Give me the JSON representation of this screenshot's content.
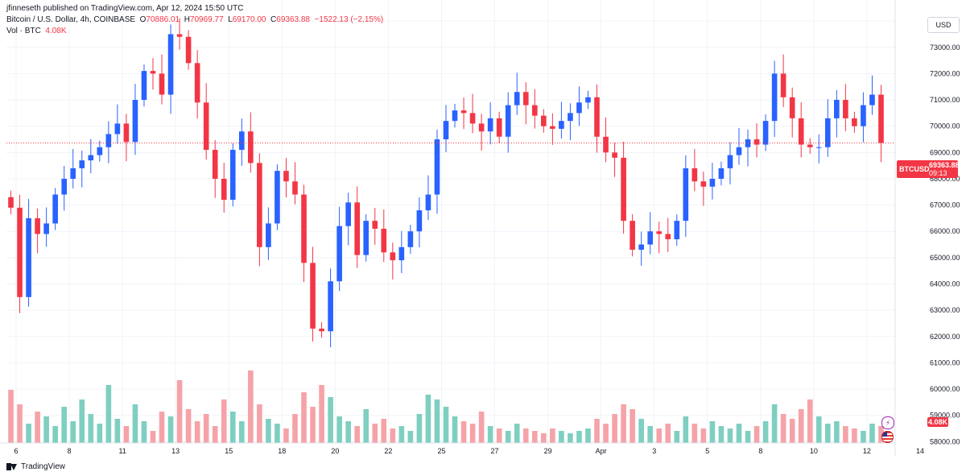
{
  "header": {
    "published": "jfinneseth published on TradingView.com, Apr 12, 2024 15:50 UTC",
    "instrument": "Bitcoin / U.S. Dollar, 4h, COINBASE",
    "ohlc": [
      {
        "label": "O",
        "value": "70886.01"
      },
      {
        "label": "H",
        "value": "70969.77"
      },
      {
        "label": "L",
        "value": "69170.00"
      },
      {
        "label": "C",
        "value": "69363.88"
      }
    ],
    "change": "−1522.13 (−2.15%)",
    "volume_label": "Vol · BTC",
    "volume_value": "4.08K"
  },
  "currency_button": "USD",
  "price_tag": {
    "symbol": "BTCUSD",
    "price": "69363.88",
    "countdown": "09:13"
  },
  "volume_tag": "4.08K",
  "footer": {
    "brand": "TradingView"
  },
  "icons": {
    "lightning": "lightning-icon",
    "flag": "us-flag-icon",
    "logo": "tradingview-logo-icon"
  },
  "colors": {
    "up": "#2962ff",
    "down": "#f23645",
    "vol_up": "#7fcfc0",
    "vol_down": "#f5a3a8",
    "grid": "#f0f3fa"
  },
  "chart_data": {
    "type": "candlestick",
    "y_ticks": [
      "74000.00",
      "73000.00",
      "72000.00",
      "71000.00",
      "70000.00",
      "69000.00",
      "68000.00",
      "67000.00",
      "66000.00",
      "65000.00",
      "64000.00",
      "63000.00",
      "62000.00",
      "61000.00",
      "60000.00",
      "59000.00",
      "58000.00"
    ],
    "ylim": [
      57950,
      74800
    ],
    "x_ticks": [
      "6",
      "8",
      "11",
      "13",
      "15",
      "18",
      "20",
      "22",
      "25",
      "27",
      "29",
      "Apr",
      "3",
      "5",
      "8",
      "10",
      "12",
      "14"
    ],
    "last_price": 69363.88,
    "close_path": [
      66900,
      63500,
      66500,
      65900,
      66300,
      67400,
      68000,
      68400,
      68700,
      68900,
      69200,
      69700,
      70100,
      69400,
      71000,
      72100,
      72000,
      71200,
      73500,
      73400,
      72400,
      70900,
      69100,
      68000,
      67200,
      69100,
      69800,
      68600,
      65400,
      66300,
      68300,
      67900,
      67400,
      64800,
      62300,
      62200,
      64100,
      66200,
      67100,
      65100,
      66400,
      66100,
      65200,
      64900,
      65400,
      66000,
      66800,
      67400,
      69500,
      70200,
      70600,
      70500,
      70100,
      69800,
      70300,
      69600,
      70800,
      71300,
      70800,
      70400,
      70000,
      69900,
      70200,
      70500,
      70900,
      71100,
      69600,
      69000,
      68800,
      66400,
      65300,
      65500,
      66000,
      65900,
      65700,
      66400,
      68400,
      67900,
      67700,
      68000,
      68400,
      68900,
      69200,
      69500,
      69300,
      70200,
      72000,
      71100,
      70300,
      69300,
      69200,
      69200,
      70300,
      71000,
      70300,
      70000,
      70800,
      71200,
      69360
    ],
    "volume_path": [
      2.2,
      1.6,
      0.8,
      1.3,
      1.1,
      0.7,
      1.5,
      0.9,
      1.8,
      1.2,
      0.8,
      2.4,
      1.0,
      0.7,
      1.6,
      0.9,
      0.5,
      1.3,
      1.1,
      2.6,
      1.4,
      0.9,
      1.2,
      0.7,
      1.8,
      1.3,
      0.9,
      3.0,
      1.6,
      1.0,
      0.8,
      0.6,
      1.2,
      2.1,
      1.5,
      2.4,
      1.9,
      1.1,
      0.9,
      0.7,
      1.4,
      0.8,
      1.0,
      0.6,
      0.7,
      0.5,
      1.2,
      2.0,
      1.8,
      1.5,
      1.1,
      0.9,
      0.8,
      1.3,
      0.7,
      0.6,
      0.5,
      0.8,
      0.6,
      0.5,
      0.4,
      0.6,
      0.5,
      0.4,
      0.5,
      0.6,
      1.0,
      0.8,
      1.2,
      1.6,
      1.4,
      1.0,
      0.7,
      0.6,
      0.8,
      0.5,
      1.1,
      0.8,
      0.6,
      0.9,
      0.7,
      0.6,
      0.8,
      0.5,
      0.7,
      0.9,
      1.6,
      1.2,
      1.0,
      1.4,
      1.8,
      1.1,
      0.8,
      0.9,
      0.7,
      0.6,
      0.5,
      0.8,
      0.7
    ]
  }
}
